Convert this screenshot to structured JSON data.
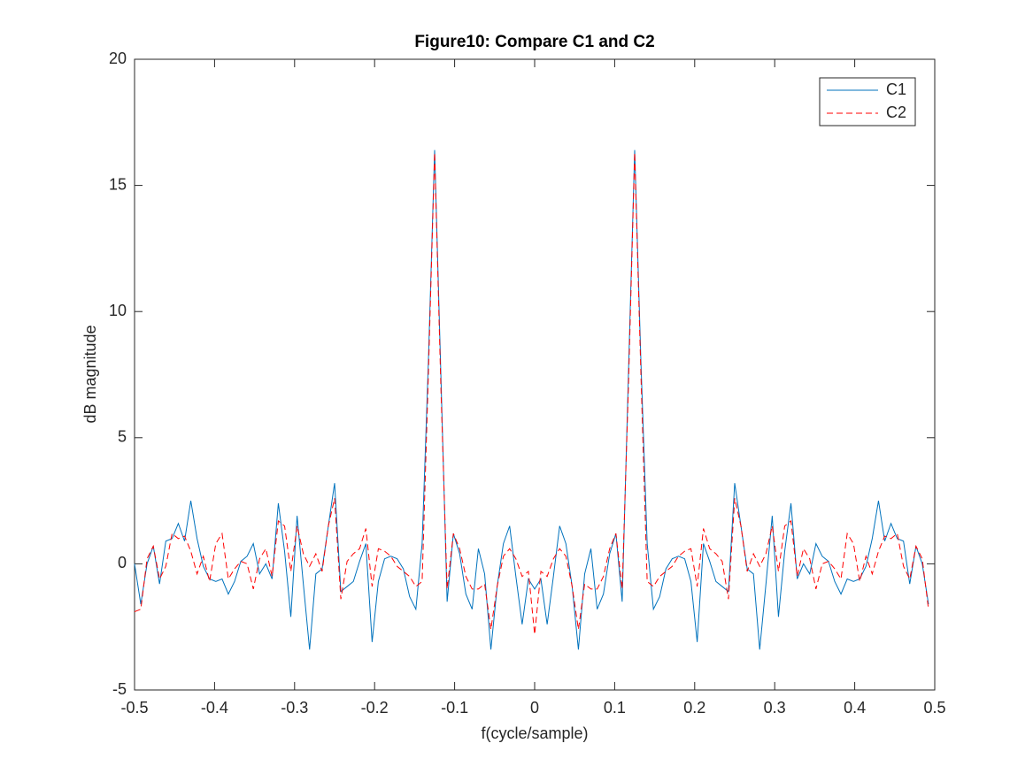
{
  "chart_data": {
    "type": "line",
    "title": "Figure10: Compare C1 and C2",
    "x_label": "f(cycle/sample)",
    "y_label": "dB magnitude",
    "x": [
      -0.5,
      -0.4921875,
      -0.484375,
      -0.4765625,
      -0.46875,
      -0.4609375,
      -0.453125,
      -0.4453125,
      -0.4375,
      -0.4296875,
      -0.421875,
      -0.4140625,
      -0.40625,
      -0.3984375,
      -0.390625,
      -0.3828125,
      -0.375,
      -0.3671875,
      -0.359375,
      -0.3515625,
      -0.34375,
      -0.3359375,
      -0.328125,
      -0.3203125,
      -0.3125,
      -0.3046875,
      -0.296875,
      -0.2890625,
      -0.28125,
      -0.2734375,
      -0.265625,
      -0.2578125,
      -0.25,
      -0.2421875,
      -0.234375,
      -0.2265625,
      -0.21875,
      -0.2109375,
      -0.203125,
      -0.1953125,
      -0.1875,
      -0.1796875,
      -0.171875,
      -0.1640625,
      -0.15625,
      -0.1484375,
      -0.140625,
      -0.1328125,
      -0.125,
      -0.1171875,
      -0.109375,
      -0.1015625,
      -0.09375,
      -0.0859375,
      -0.078125,
      -0.0703125,
      -0.0625,
      -0.0546875,
      -0.046875,
      -0.0390625,
      -0.03125,
      -0.0234375,
      -0.015625,
      -0.0078125,
      0,
      0.0078125,
      0.015625,
      0.0234375,
      0.03125,
      0.0390625,
      0.046875,
      0.0546875,
      0.0625,
      0.0703125,
      0.078125,
      0.0859375,
      0.09375,
      0.1015625,
      0.109375,
      0.1171875,
      0.125,
      0.1328125,
      0.140625,
      0.1484375,
      0.15625,
      0.1640625,
      0.171875,
      0.1796875,
      0.1875,
      0.1953125,
      0.203125,
      0.2109375,
      0.21875,
      0.2265625,
      0.234375,
      0.2421875,
      0.25,
      0.2578125,
      0.265625,
      0.2734375,
      0.28125,
      0.2890625,
      0.296875,
      0.3046875,
      0.3125,
      0.3203125,
      0.328125,
      0.3359375,
      0.34375,
      0.3515625,
      0.359375,
      0.3671875,
      0.375,
      0.3828125,
      0.390625,
      0.3984375,
      0.40625,
      0.4140625,
      0.421875,
      0.4296875,
      0.4375,
      0.4453125,
      0.453125,
      0.4609375,
      0.46875,
      0.4765625,
      0.484375,
      0.4921875
    ],
    "series": [
      {
        "name": "C1",
        "color": "#0072bd",
        "dash": "solid",
        "values": [
          0,
          -1.6,
          0,
          0.7,
          -0.8,
          0.9,
          1.0,
          1.6,
          0.9,
          2.5,
          1.0,
          -0.1,
          -0.6,
          -0.7,
          -0.6,
          -1.2,
          -0.7,
          0.1,
          0.3,
          0.8,
          -0.4,
          0,
          -0.6,
          2.4,
          0.5,
          -2.1,
          1.9,
          -0.8,
          -3.4,
          -0.4,
          -0.2,
          1.5,
          3.2,
          -1.1,
          -0.9,
          -0.7,
          0.1,
          0.8,
          -3.1,
          -0.7,
          0.2,
          0.3,
          0.2,
          -0.2,
          -1.3,
          -1.8,
          0.8,
          8.0,
          16.4,
          7.5,
          -1.5,
          1.2,
          0.4,
          -1.2,
          -1.8,
          0.6,
          -0.4,
          -3.4,
          -0.9,
          0.8,
          1.5,
          -0.5,
          -2.4,
          -0.6,
          -1.0,
          -0.6,
          -2.4,
          -0.5,
          1.5,
          0.8,
          -0.9,
          -3.4,
          -0.4,
          0.6,
          -1.8,
          -1.2,
          0.4,
          1.2,
          -1.5,
          7.5,
          16.4,
          8.0,
          0.8,
          -1.8,
          -1.3,
          -0.2,
          0.2,
          0.3,
          0.2,
          -0.7,
          -3.1,
          0.8,
          0.1,
          -0.7,
          -0.9,
          -1.1,
          3.2,
          1.5,
          -0.2,
          -0.4,
          -3.4,
          -0.8,
          1.9,
          -2.1,
          0.5,
          2.4,
          -0.6,
          0,
          -0.4,
          0.8,
          0.3,
          0.1,
          -0.7,
          -1.2,
          -0.6,
          -0.7,
          -0.6,
          -0.1,
          1.0,
          2.5,
          0.9,
          1.6,
          1.0,
          0.9,
          -0.8,
          0.7,
          0,
          -1.6
        ]
      },
      {
        "name": "C2",
        "color": "#ff0000",
        "dash": "dashed",
        "values": [
          -1.9,
          -1.8,
          0.2,
          0.7,
          -0.6,
          -0.1,
          1.2,
          1.0,
          1.1,
          0.5,
          -0.4,
          0.3,
          -0.7,
          0.8,
          1.2,
          -0.6,
          -0.2,
          0.1,
          0.0,
          -1.0,
          0.2,
          0.6,
          -0.5,
          1.7,
          1.5,
          -0.3,
          1.5,
          0.4,
          -0.1,
          0.4,
          -0.3,
          1.5,
          2.6,
          -1.4,
          0.1,
          0.4,
          0.6,
          1.4,
          -0.9,
          0.6,
          0.5,
          0.3,
          -0.1,
          -0.3,
          -0.5,
          -0.9,
          -0.7,
          7.5,
          16.3,
          7.0,
          -1.0,
          1.2,
          0.6,
          -0.5,
          -1.0,
          -1.0,
          -0.8,
          -2.6,
          -0.9,
          0.3,
          0.6,
          0.2,
          -0.5,
          -0.3,
          -2.8,
          -0.3,
          -0.5,
          0.2,
          0.6,
          0.3,
          -0.9,
          -2.6,
          -0.8,
          -1.0,
          -1.0,
          -0.5,
          0.6,
          1.2,
          -1.0,
          7.0,
          16.3,
          7.5,
          -0.7,
          -0.9,
          -0.5,
          -0.3,
          -0.1,
          0.3,
          0.5,
          0.6,
          -0.9,
          1.4,
          0.6,
          0.4,
          0.1,
          -1.4,
          2.6,
          1.5,
          -0.3,
          0.4,
          -0.1,
          0.4,
          1.5,
          -0.3,
          1.5,
          1.7,
          -0.5,
          0.6,
          0.2,
          -1.0,
          0.0,
          0.1,
          -0.2,
          -0.6,
          1.2,
          0.8,
          -0.7,
          0.3,
          -0.4,
          0.5,
          1.1,
          1.0,
          1.2,
          -0.1,
          -0.6,
          0.7,
          0.2,
          -1.8
        ]
      }
    ],
    "xlim": [
      -0.5,
      0.5
    ],
    "xticks": [
      -0.5,
      -0.4,
      -0.3,
      -0.2,
      -0.1,
      0,
      0.1,
      0.2,
      0.3,
      0.4,
      0.5
    ],
    "ylim": [
      -5,
      20
    ],
    "yticks": [
      -5,
      0,
      5,
      10,
      15,
      20
    ],
    "grid": false,
    "legend": "northeast"
  }
}
